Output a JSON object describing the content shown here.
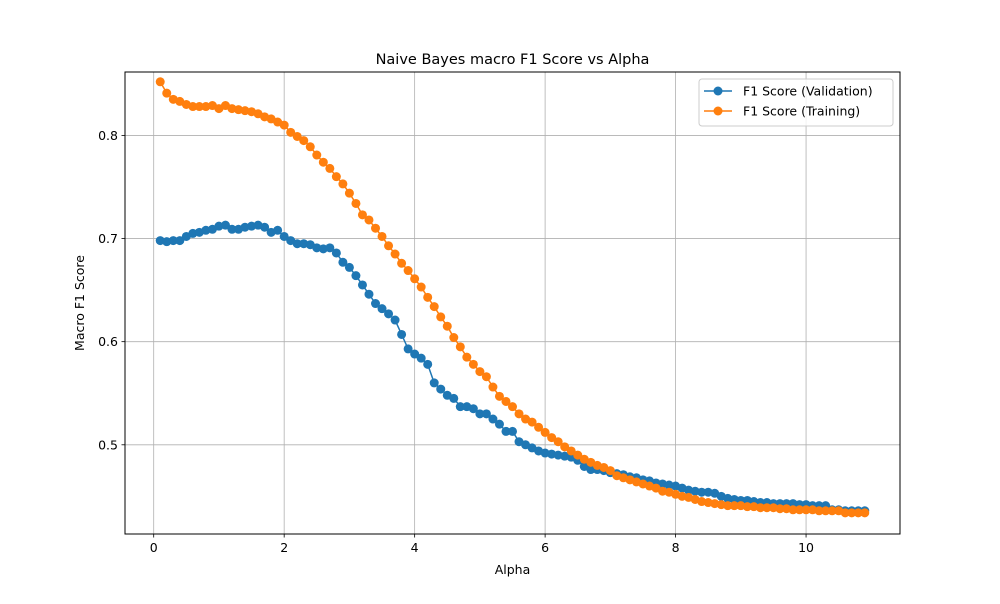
{
  "chart_data": {
    "type": "line",
    "title": "Naive Bayes macro F1 Score vs Alpha",
    "xlabel": "Alpha",
    "ylabel": "Macro F1 Score",
    "xlim": [
      -0.44,
      11.44
    ],
    "ylim": [
      0.4135,
      0.8615
    ],
    "xticks": [
      0,
      2,
      4,
      6,
      8,
      10
    ],
    "xtick_labels": [
      "0",
      "2",
      "4",
      "6",
      "8",
      "10"
    ],
    "yticks": [
      0.5,
      0.6,
      0.7,
      0.8
    ],
    "ytick_labels": [
      "0.5",
      "0.6",
      "0.7",
      "0.8"
    ],
    "grid": true,
    "legend_position": "upper right",
    "x": [
      0.1,
      0.2,
      0.3,
      0.4,
      0.5,
      0.6,
      0.7,
      0.8,
      0.9,
      1.0,
      1.1,
      1.2,
      1.3,
      1.4,
      1.5,
      1.6,
      1.7,
      1.8,
      1.9,
      2.0,
      2.1,
      2.2,
      2.3,
      2.4,
      2.5,
      2.6,
      2.7,
      2.8,
      2.9,
      3.0,
      3.1,
      3.2,
      3.3,
      3.4,
      3.5,
      3.6,
      3.7,
      3.8,
      3.9,
      4.0,
      4.1,
      4.2,
      4.3,
      4.4,
      4.5,
      4.6,
      4.7,
      4.8,
      4.9,
      5.0,
      5.1,
      5.2,
      5.3,
      5.4,
      5.5,
      5.6,
      5.7,
      5.8,
      5.9,
      6.0,
      6.1,
      6.2,
      6.3,
      6.4,
      6.5,
      6.6,
      6.7,
      6.8,
      6.9,
      7.0,
      7.1,
      7.2,
      7.3,
      7.4,
      7.5,
      7.6,
      7.7,
      7.8,
      7.9,
      8.0,
      8.1,
      8.2,
      8.3,
      8.4,
      8.5,
      8.6,
      8.7,
      8.8,
      8.9,
      9.0,
      9.1,
      9.2,
      9.3,
      9.4,
      9.5,
      9.6,
      9.7,
      9.8,
      9.9,
      10.0,
      10.1,
      10.2,
      10.3,
      10.4,
      10.5,
      10.6,
      10.7,
      10.8,
      10.9
    ],
    "series": [
      {
        "name": "F1 Score (Validation)",
        "color": "#1f77b4",
        "values": [
          0.698,
          0.697,
          0.698,
          0.698,
          0.702,
          0.705,
          0.706,
          0.708,
          0.709,
          0.712,
          0.713,
          0.709,
          0.709,
          0.711,
          0.712,
          0.713,
          0.711,
          0.706,
          0.708,
          0.702,
          0.698,
          0.695,
          0.695,
          0.694,
          0.691,
          0.69,
          0.691,
          0.686,
          0.677,
          0.672,
          0.664,
          0.655,
          0.646,
          0.637,
          0.632,
          0.627,
          0.621,
          0.607,
          0.593,
          0.588,
          0.584,
          0.578,
          0.56,
          0.554,
          0.548,
          0.545,
          0.537,
          0.537,
          0.535,
          0.53,
          0.53,
          0.525,
          0.52,
          0.513,
          0.513,
          0.503,
          0.5,
          0.497,
          0.494,
          0.492,
          0.491,
          0.49,
          0.489,
          0.488,
          0.485,
          0.479,
          0.476,
          0.476,
          0.475,
          0.473,
          0.472,
          0.471,
          0.469,
          0.468,
          0.466,
          0.465,
          0.463,
          0.462,
          0.461,
          0.46,
          0.458,
          0.456,
          0.455,
          0.454,
          0.454,
          0.453,
          0.45,
          0.448,
          0.447,
          0.446,
          0.446,
          0.445,
          0.444,
          0.444,
          0.443,
          0.443,
          0.443,
          0.443,
          0.442,
          0.442,
          0.441,
          0.441,
          0.441,
          0.437,
          0.437,
          0.436,
          0.436,
          0.436,
          0.436
        ]
      },
      {
        "name": "F1 Score (Training)",
        "color": "#ff7f0e",
        "values": [
          0.852,
          0.841,
          0.835,
          0.833,
          0.83,
          0.828,
          0.828,
          0.828,
          0.829,
          0.826,
          0.829,
          0.826,
          0.825,
          0.824,
          0.823,
          0.821,
          0.818,
          0.816,
          0.813,
          0.81,
          0.803,
          0.799,
          0.795,
          0.789,
          0.781,
          0.774,
          0.768,
          0.76,
          0.753,
          0.744,
          0.734,
          0.723,
          0.718,
          0.71,
          0.702,
          0.693,
          0.685,
          0.676,
          0.669,
          0.661,
          0.653,
          0.643,
          0.634,
          0.624,
          0.615,
          0.604,
          0.595,
          0.585,
          0.578,
          0.571,
          0.566,
          0.556,
          0.547,
          0.542,
          0.537,
          0.53,
          0.525,
          0.522,
          0.517,
          0.512,
          0.507,
          0.503,
          0.498,
          0.494,
          0.49,
          0.486,
          0.483,
          0.48,
          0.478,
          0.475,
          0.47,
          0.468,
          0.466,
          0.464,
          0.462,
          0.46,
          0.458,
          0.455,
          0.454,
          0.452,
          0.45,
          0.449,
          0.447,
          0.445,
          0.444,
          0.443,
          0.442,
          0.441,
          0.441,
          0.441,
          0.44,
          0.44,
          0.439,
          0.439,
          0.439,
          0.438,
          0.438,
          0.437,
          0.437,
          0.437,
          0.437,
          0.436,
          0.436,
          0.436,
          0.436,
          0.434,
          0.434,
          0.434,
          0.434
        ]
      }
    ]
  }
}
